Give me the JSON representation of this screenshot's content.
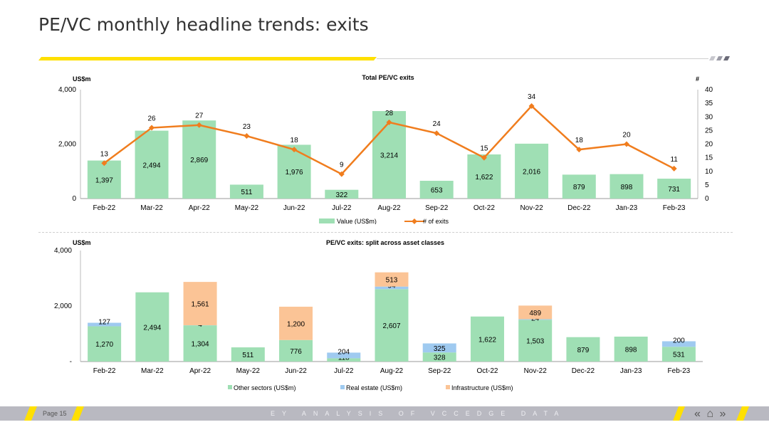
{
  "page": {
    "title": "PE/VC monthly headline trends: exits",
    "page_number": "Page 15",
    "footer_text": "EY ANALYSIS OF VCCEDGE DATA",
    "nav": {
      "back_icon": "«",
      "home_icon": "⌂",
      "forward_icon": "»"
    }
  },
  "chart_data": [
    {
      "type": "bar",
      "title": "Total PE/VC exits",
      "ylabel": "US$m",
      "y2label": "#",
      "ylim": [
        0,
        4000
      ],
      "yticks": [
        "0",
        "2,000",
        "4,000"
      ],
      "y2lim": [
        0,
        40
      ],
      "y2ticks": [
        "0",
        "5",
        "10",
        "15",
        "20",
        "25",
        "30",
        "35",
        "40"
      ],
      "categories": [
        "Feb-22",
        "Mar-22",
        "Apr-22",
        "May-22",
        "Jun-22",
        "Jul-22",
        "Aug-22",
        "Sep-22",
        "Oct-22",
        "Nov-22",
        "Dec-22",
        "Jan-23",
        "Feb-23"
      ],
      "series": [
        {
          "name": "Value (US$m)",
          "kind": "bar",
          "color": "#9fdfb4",
          "values": [
            1397,
            2494,
            2869,
            511,
            1976,
            322,
            3214,
            653,
            1622,
            2016,
            879,
            898,
            731
          ],
          "labels": [
            "1,397",
            "2,494",
            "2,869",
            "511",
            "1,976",
            "322",
            "3,214",
            "653",
            "1,622",
            "2,016",
            "879",
            "898",
            "731"
          ]
        },
        {
          "name": "# of exits",
          "kind": "line",
          "axis": "right",
          "color": "#f07d1e",
          "values": [
            13,
            26,
            27,
            23,
            18,
            9,
            28,
            24,
            15,
            34,
            18,
            20,
            11
          ],
          "labels": [
            "13",
            "26",
            "27",
            "23",
            "18",
            "9",
            "28",
            "24",
            "15",
            "34",
            "18",
            "20",
            "11"
          ]
        }
      ],
      "legend": "bottom"
    },
    {
      "type": "bar",
      "stacked": true,
      "title": "PE/VC exits: split across asset classes",
      "ylabel": "US$m",
      "ylim": [
        0,
        4000
      ],
      "yticks": [
        "-",
        "2,000",
        "4,000"
      ],
      "categories": [
        "Feb-22",
        "Mar-22",
        "Apr-22",
        "May-22",
        "Jun-22",
        "Jul-22",
        "Aug-22",
        "Sep-22",
        "Oct-22",
        "Nov-22",
        "Dec-22",
        "Jan-23",
        "Feb-23"
      ],
      "series": [
        {
          "name": "Other sectors (US$m)",
          "color": "#9fdfb4",
          "values": [
            1270,
            2494,
            1304,
            511,
            776,
            118,
            2607,
            328,
            1622,
            1503,
            879,
            898,
            531
          ],
          "labels": [
            "1,270",
            "2,494",
            "1,304",
            "511",
            "776",
            "118",
            "2,607",
            "328",
            "1,622",
            "1,503",
            "879",
            "898",
            "531"
          ]
        },
        {
          "name": "Real estate (US$m)",
          "color": "#9fcaf0",
          "values": [
            127,
            0,
            4,
            0,
            0,
            204,
            94,
            325,
            0,
            24,
            0,
            0,
            200
          ],
          "labels": [
            "127",
            "",
            "4",
            "",
            "",
            "204",
            "94",
            "325",
            "",
            "24",
            "",
            "",
            "200"
          ]
        },
        {
          "name": "Infrastructure (US$m)",
          "color": "#fbc496",
          "values": [
            0,
            0,
            1561,
            0,
            1200,
            0,
            513,
            0,
            0,
            489,
            0,
            0,
            0
          ],
          "labels": [
            "",
            "",
            "1,561",
            "",
            "1,200",
            "",
            "513",
            "",
            "",
            "489",
            "",
            "",
            ""
          ]
        }
      ],
      "legend": "bottom"
    }
  ]
}
